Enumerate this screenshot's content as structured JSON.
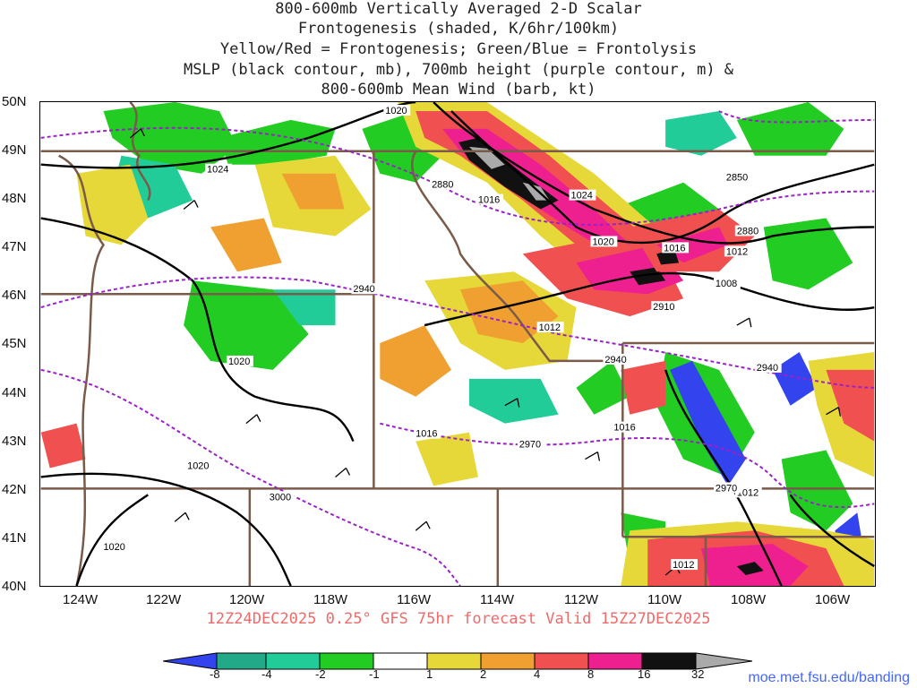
{
  "title_lines": [
    "800-600mb Vertically Averaged 2-D Scalar",
    "Frontogenesis (shaded, K/6hr/100km)",
    "Yellow/Red = Frontogenesis;  Green/Blue = Frontolysis",
    "MSLP (black contour, mb), 700mb height (purple contour, m) &",
    "800-600mb Mean Wind (barb, kt)"
  ],
  "lat_labels": [
    "50N",
    "49N",
    "48N",
    "47N",
    "46N",
    "45N",
    "44N",
    "43N",
    "42N",
    "41N",
    "40N"
  ],
  "lon_labels": [
    "124W",
    "122W",
    "120W",
    "118W",
    "116W",
    "114W",
    "112W",
    "110W",
    "108W",
    "106W"
  ],
  "valid_text": "12Z24DEC2025 0.25° GFS 75hr forecast Valid 15Z27DEC2025",
  "colorbar": {
    "ticks": [
      "-8",
      "-4",
      "-2",
      "-1",
      "1",
      "2",
      "4",
      "8",
      "16",
      "32"
    ],
    "colors": [
      "#3344ee",
      "#22aa88",
      "#22cc99",
      "#22cc22",
      "#ffffff",
      "#e6d838",
      "#f0a030",
      "#f05050",
      "#ee1f8f",
      "#111111",
      "#aaaaaa"
    ]
  },
  "contour_labels": {
    "mslp": [
      "1020",
      "1024",
      "1016",
      "1024",
      "1020",
      "1016",
      "1012",
      "1008",
      "1012",
      "1020",
      "1016",
      "1020",
      "1016",
      "1012",
      "1012",
      "1020"
    ],
    "height": [
      "2880",
      "2850",
      "2880",
      "2940",
      "2910",
      "2940",
      "2940",
      "2970",
      "2970",
      "3000"
    ]
  },
  "colors": {
    "state_border": "#7a5a48",
    "mslp": "#000000",
    "height": "#9a22c8",
    "title": "#222222",
    "valid": "#f06a6a",
    "credit": "#4466ff"
  },
  "credit": "moe.met.fsu.edu/banding"
}
